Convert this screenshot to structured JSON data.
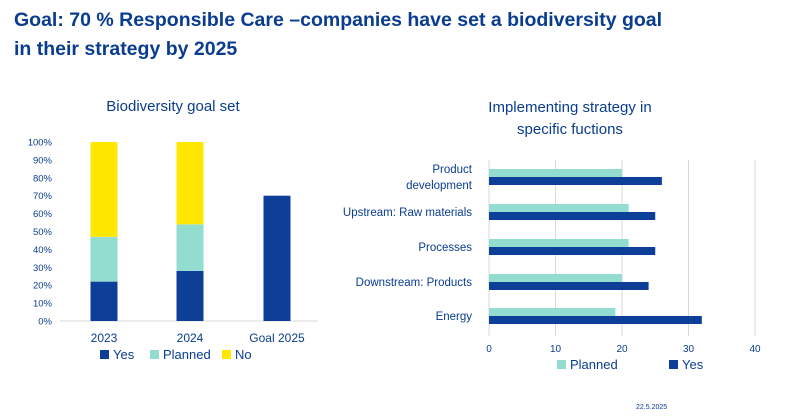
{
  "page": {
    "title_line1": "Goal: 70 % Responsible Care –companies have set a biodiversity goal",
    "title_line2": "in their strategy by 2025",
    "footer_date": "22.5.2025"
  },
  "colors": {
    "yes": "#0d3f98",
    "planned": "#93ddd0",
    "no": "#ffe700",
    "text": "#0a3d8f",
    "grid": "#d9d9d9"
  },
  "chart_data": [
    {
      "type": "bar",
      "stacked": true,
      "title": "Biodiversity goal set",
      "categories": [
        "2023",
        "2024",
        "Goal 2025"
      ],
      "series": [
        {
          "name": "Yes",
          "values": [
            22,
            28,
            70
          ]
        },
        {
          "name": "Planned",
          "values": [
            25,
            26,
            0
          ]
        },
        {
          "name": "No",
          "values": [
            53,
            46,
            0
          ]
        }
      ],
      "yticks": [
        "0%",
        "10%",
        "20%",
        "30%",
        "40%",
        "50%",
        "60%",
        "70%",
        "80%",
        "90%",
        "100%"
      ],
      "ylim": [
        0,
        100
      ],
      "grid": false,
      "legend": "bottom"
    },
    {
      "type": "bar",
      "orientation": "horizontal",
      "title_lines": [
        "Implementing strategy in",
        "specific fuctions"
      ],
      "categories": [
        {
          "lines": [
            "Product",
            "development"
          ]
        },
        {
          "lines": [
            "Upstream: Raw materials"
          ]
        },
        {
          "lines": [
            "Processes"
          ]
        },
        {
          "lines": [
            "Downstream: Products"
          ]
        },
        {
          "lines": [
            "Energy"
          ]
        }
      ],
      "series": [
        {
          "name": "Planned",
          "values": [
            20,
            21,
            21,
            20,
            19
          ]
        },
        {
          "name": "Yes",
          "values": [
            26,
            25,
            25,
            24,
            32
          ]
        }
      ],
      "xticks": [
        "0",
        "10",
        "20",
        "30",
        "40"
      ],
      "xlim": [
        0,
        40
      ],
      "grid": true,
      "legend": "bottom"
    }
  ]
}
